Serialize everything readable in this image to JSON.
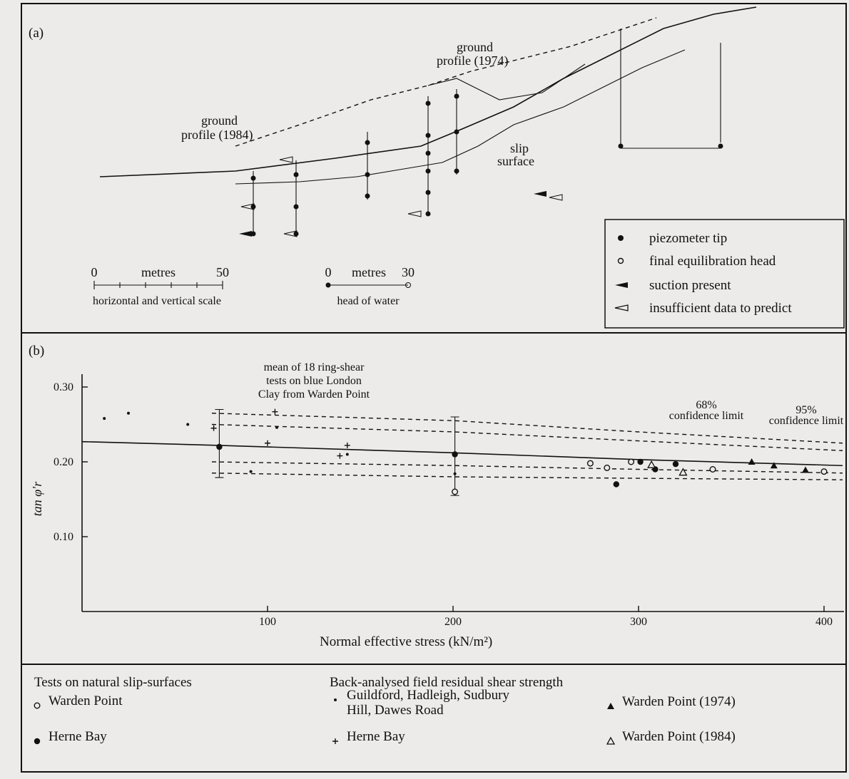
{
  "panel_a": {
    "label": "(a)",
    "profile_1974": [
      "ground",
      "profile (1974)"
    ],
    "profile_1984": [
      "ground",
      "profile (1984)"
    ],
    "slip_surface": [
      "slip",
      "surface"
    ],
    "scale_start": 0,
    "scale_units": "metres",
    "scale_end": 50,
    "scale_caption": "horizontal and vertical scale",
    "head_start": 0,
    "head_units": "metres",
    "head_end": 30,
    "head_caption": "head of water",
    "legend": [
      "piezometer tip",
      "final equilibration head",
      "suction present",
      "insufficient data to predict"
    ]
  },
  "chart_data": {
    "type": "scatter",
    "panel_label": "(b)",
    "x_label": "Normal effective stress (kN/m²)",
    "y_label": "tan φ′r",
    "mean_label": [
      "mean of 18 ring-shear",
      "tests on blue London",
      "Clay from Warden Point"
    ],
    "limit_68": [
      "68%",
      "confidence limit"
    ],
    "limit_95": [
      "95%",
      "confidence limit"
    ],
    "xlim": [
      0,
      410
    ],
    "ylim": [
      0,
      0.32
    ],
    "xticks": [
      100,
      200,
      300,
      400
    ],
    "yticks": [
      {
        "value": 0.1,
        "label": "0.10"
      },
      {
        "value": 0.2,
        "label": "0.20"
      },
      {
        "value": 0.3,
        "label": "0.30"
      }
    ],
    "legend_headings": [
      "Tests on natural slip-surfaces",
      "Back-analysed field residual shear strength"
    ],
    "series": [
      {
        "name": "Warden Point",
        "marker": "open-circle",
        "color": "#111",
        "x": [
          201,
          274,
          283,
          296,
          340,
          400
        ],
        "values": [
          0.16,
          0.198,
          0.192,
          0.2,
          0.19,
          0.187
        ]
      },
      {
        "name": "Herne Bay",
        "marker": "dot",
        "color": "#111",
        "x": [
          74,
          201,
          288,
          301,
          309,
          320
        ],
        "values": [
          0.22,
          0.21,
          0.17,
          0.2,
          0.19,
          0.197
        ]
      },
      {
        "name": "Guildford, Hadleigh, Sudbury Hill, Dawes Road",
        "marker": "small-dot",
        "color": "#111",
        "x": [
          12,
          25,
          57,
          105,
          91,
          143,
          201
        ],
        "values": [
          0.258,
          0.265,
          0.25,
          0.246,
          0.187,
          0.21,
          0.184
        ]
      },
      {
        "name": "Herne Bay",
        "marker": "plus",
        "color": "#111",
        "x": [
          104,
          71,
          100,
          143,
          139
        ],
        "values": [
          0.267,
          0.245,
          0.225,
          0.222,
          0.208
        ]
      },
      {
        "name": "Warden Point (1974)",
        "marker": "filled-triangle",
        "color": "#111",
        "x": [
          361,
          373,
          390
        ],
        "values": [
          0.2,
          0.195,
          0.189
        ]
      },
      {
        "name": "Warden Point (1984)",
        "marker": "open-triangle",
        "color": "#111",
        "x": [
          307,
          324
        ],
        "values": [
          0.196,
          0.186
        ]
      }
    ],
    "lines": [
      {
        "style": "solid",
        "x": [
          0,
          74,
          201,
          300,
          410
        ],
        "values": [
          0.227,
          0.222,
          0.212,
          0.203,
          0.195
        ]
      },
      {
        "style": "dashed",
        "x": [
          70,
          201,
          300,
          410
        ],
        "values": [
          0.265,
          0.255,
          0.24,
          0.225
        ]
      },
      {
        "style": "dashed",
        "x": [
          70,
          201,
          300,
          410
        ],
        "values": [
          0.25,
          0.24,
          0.228,
          0.215
        ]
      },
      {
        "style": "dashed",
        "x": [
          70,
          201,
          300,
          410
        ],
        "values": [
          0.2,
          0.195,
          0.19,
          0.185
        ]
      },
      {
        "style": "dashed",
        "x": [
          70,
          201,
          300,
          410
        ],
        "values": [
          0.185,
          0.18,
          0.178,
          0.176
        ]
      }
    ],
    "error_bars": [
      {
        "x": 74,
        "low": 0.179,
        "high": 0.27
      },
      {
        "x": 201,
        "low": 0.155,
        "high": 0.26
      }
    ]
  }
}
